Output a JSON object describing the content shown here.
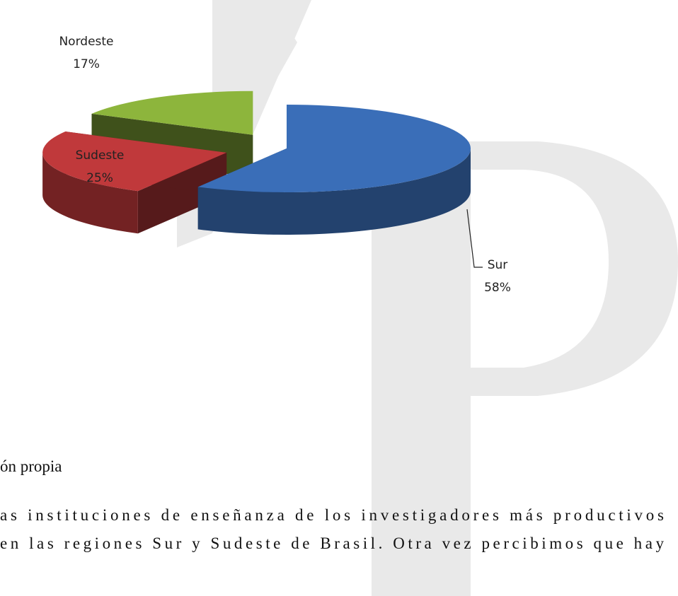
{
  "chart_data": {
    "type": "pie3d",
    "categories": [
      "Sur",
      "Sudeste",
      "Nordeste"
    ],
    "values": [
      58,
      25,
      17
    ],
    "value_labels": [
      "58%",
      "25%",
      "17%"
    ],
    "colors": [
      "#3a6eb8",
      "#c0393b",
      "#8db53c"
    ]
  },
  "text": {
    "lines": [
      "ón propia",
      "as instituciones de enseñanza de los investigadores más productivos",
      "en las regiones Sur y Sudeste de Brasil. Otra vez percibimos que hay"
    ]
  }
}
